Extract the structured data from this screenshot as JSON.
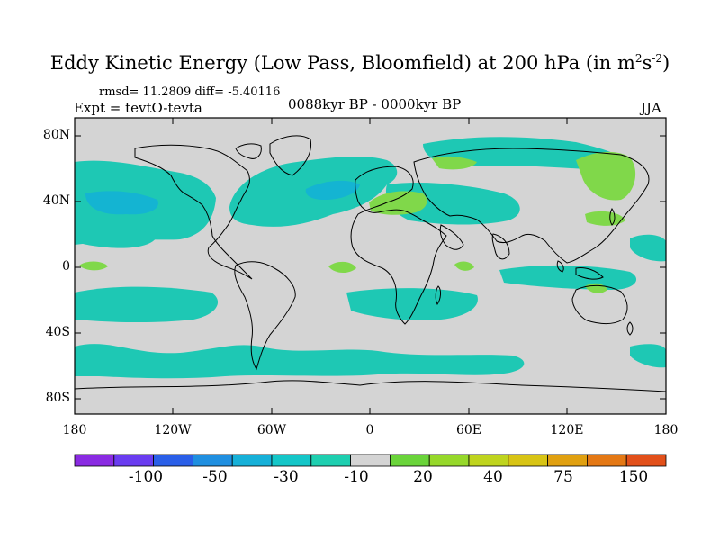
{
  "title": {
    "main": "Eddy Kinetic Energy (Low Pass, Bloomfield) at 200 hPa (in m",
    "sup1": "2",
    "s": "s",
    "sup2": "-2",
    "close": ")"
  },
  "stats": "rmsd= 11.2809 diff= -5.40116",
  "expt": "Expt = tevtO-tevta",
  "period": "0088kyr BP - 0000kyr BP",
  "season": "JJA",
  "map": {
    "projection": "cylindrical equidistant",
    "lon_range": [
      -180,
      180
    ],
    "lat_range": [
      -90,
      90
    ],
    "lat_ticks": [
      "80N",
      "40N",
      "0",
      "40S",
      "80S"
    ],
    "lon_ticks": [
      "180",
      "120W",
      "60W",
      "0",
      "60E",
      "120E",
      "180"
    ],
    "background_color": "#d4d4d4",
    "shading_features": [
      {
        "name": "north-pacific-negative",
        "level": -10,
        "color": "#1ec8b4"
      },
      {
        "name": "north-atlantic-negative",
        "level": -10,
        "color": "#1ec8b4"
      },
      {
        "name": "north-atlantic-core",
        "level": -30,
        "color": "#14b4d2"
      },
      {
        "name": "mediterranean-positive",
        "level": 20,
        "color": "#80d84a"
      },
      {
        "name": "northeast-asia-positive",
        "level": 20,
        "color": "#80d84a"
      },
      {
        "name": "southern-ocean-negative",
        "level": -10,
        "color": "#1ec8b4"
      }
    ]
  },
  "colorbar": {
    "colors": [
      "#8a2be2",
      "#6a3cf0",
      "#2a5fe8",
      "#1f8fe0",
      "#16b0d8",
      "#14c6c8",
      "#1ecfb0",
      "#d4d4d4",
      "#6ad43a",
      "#96d82a",
      "#bfd41e",
      "#d8c414",
      "#e0a010",
      "#e47814",
      "#e2501a"
    ],
    "labels": [
      "-100",
      "-50",
      "-30",
      "-10",
      "20",
      "40",
      "75",
      "150"
    ]
  }
}
